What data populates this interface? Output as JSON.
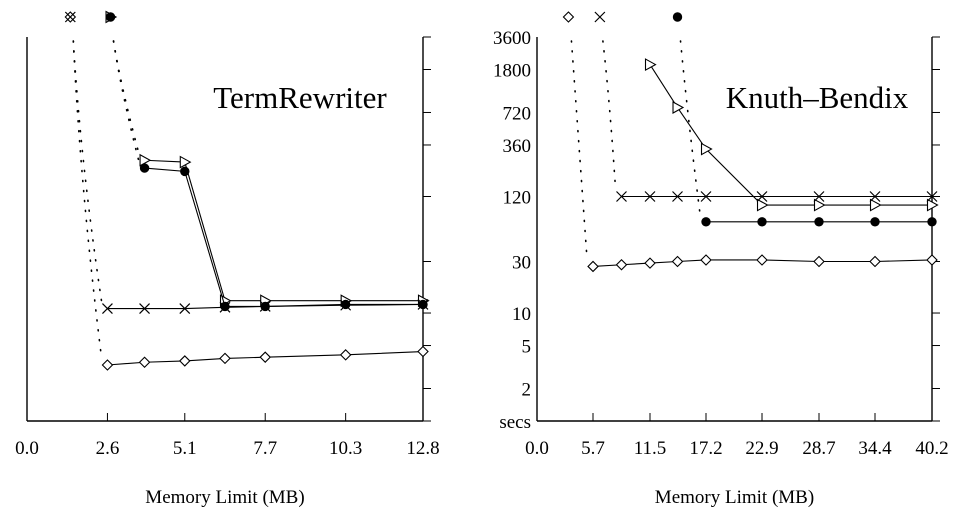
{
  "chart_data": [
    {
      "type": "line",
      "title": "TermRewriter",
      "xlabel": "Memory Limit (MB)",
      "ylabel": "",
      "categories": [
        "0.0",
        "2.6",
        "5.1",
        "7.7",
        "10.3",
        "12.8"
      ],
      "xlim": [
        0.0,
        12.8
      ],
      "ylim": [
        1,
        3600
      ],
      "yscale": "log",
      "y_tick_labels": [],
      "series": [
        {
          "marker": "triangle",
          "points": [
            [
              3.8,
              260
            ],
            [
              5.1,
              250
            ],
            [
              6.4,
              13
            ],
            [
              7.7,
              13
            ],
            [
              10.3,
              13
            ],
            [
              12.8,
              13
            ]
          ]
        },
        {
          "marker": "circle",
          "points": [
            [
              3.8,
              220
            ],
            [
              5.1,
              205
            ],
            [
              6.4,
              11.5
            ],
            [
              7.7,
              11.5
            ],
            [
              10.3,
              12
            ],
            [
              12.8,
              12
            ]
          ]
        },
        {
          "marker": "x",
          "points": [
            [
              2.6,
              11
            ],
            [
              3.8,
              11
            ],
            [
              5.1,
              11
            ],
            [
              6.4,
              11.3
            ],
            [
              7.7,
              11.5
            ],
            [
              10.3,
              11.8
            ],
            [
              12.8,
              12
            ]
          ]
        },
        {
          "marker": "diamond",
          "points": [
            [
              2.6,
              3.3
            ],
            [
              3.8,
              3.5
            ],
            [
              5.1,
              3.6
            ],
            [
              6.4,
              3.8
            ],
            [
              7.7,
              3.9
            ],
            [
              10.3,
              4.1
            ],
            [
              12.8,
              4.4
            ]
          ]
        }
      ],
      "top_markers": [
        {
          "marker": "diamond",
          "x": 1.4
        },
        {
          "marker": "x",
          "x": 1.4
        },
        {
          "marker": "triangle",
          "x": 2.7
        },
        {
          "marker": "circle",
          "x": 2.7
        }
      ]
    },
    {
      "type": "line",
      "title": "Knuth–Bendix",
      "xlabel": "Memory Limit (MB)",
      "ylabel": "secs",
      "categories": [
        "0.0",
        "5.7",
        "11.5",
        "17.2",
        "22.9",
        "28.7",
        "34.4",
        "40.2"
      ],
      "xlim": [
        0.0,
        40.2
      ],
      "ylim": [
        1,
        3600
      ],
      "yscale": "log",
      "y_tick_labels": [
        "3600",
        "1800",
        "720",
        "360",
        "120",
        "30",
        "10",
        "5",
        "2",
        "secs"
      ],
      "series": [
        {
          "marker": "triangle",
          "points": [
            [
              11.5,
              2000
            ],
            [
              14.3,
              800
            ],
            [
              17.2,
              330
            ],
            [
              22.9,
              100
            ],
            [
              28.7,
              100
            ],
            [
              34.4,
              100
            ],
            [
              40.2,
              100
            ]
          ]
        },
        {
          "marker": "circle",
          "points": [
            [
              17.2,
              70
            ],
            [
              22.9,
              70
            ],
            [
              28.7,
              70
            ],
            [
              34.4,
              70
            ],
            [
              40.2,
              70
            ]
          ]
        },
        {
          "marker": "x",
          "points": [
            [
              8.6,
              120
            ],
            [
              11.5,
              120
            ],
            [
              14.3,
              120
            ],
            [
              17.2,
              120
            ],
            [
              22.9,
              120
            ],
            [
              28.7,
              120
            ],
            [
              34.4,
              120
            ],
            [
              40.2,
              120
            ]
          ]
        },
        {
          "marker": "diamond",
          "points": [
            [
              5.7,
              27
            ],
            [
              8.6,
              28
            ],
            [
              11.5,
              29
            ],
            [
              14.3,
              30
            ],
            [
              17.2,
              31
            ],
            [
              22.9,
              31
            ],
            [
              28.7,
              30
            ],
            [
              34.4,
              30
            ],
            [
              40.2,
              31
            ]
          ]
        }
      ],
      "top_markers": [
        {
          "marker": "diamond",
          "x": 3.2
        },
        {
          "marker": "x",
          "x": 6.4
        },
        {
          "marker": "circle",
          "x": 14.3
        }
      ]
    }
  ]
}
